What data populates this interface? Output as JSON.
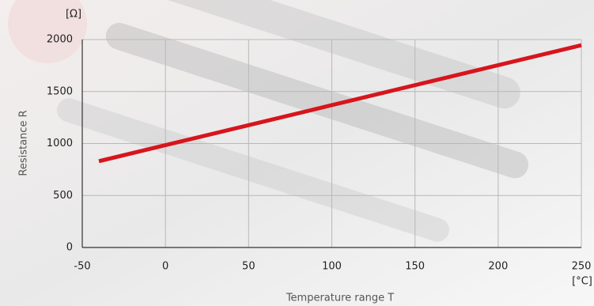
{
  "chart_data": {
    "type": "line",
    "x_label": "Temperature range T",
    "y_label": "Resistance R",
    "x_unit": "[°C]",
    "y_unit": "[Ω]",
    "x": [
      -40,
      0,
      50,
      100,
      150,
      200,
      250
    ],
    "series": [
      {
        "name": "Resistance",
        "color": "#d7151d",
        "values": [
          830,
          984,
          1176,
          1369,
          1561,
          1753,
          1945
        ]
      }
    ],
    "xlim": [
      -50,
      250
    ],
    "xticks": [
      -50,
      0,
      50,
      100,
      150,
      200,
      250
    ],
    "ylim": [
      0,
      2000
    ],
    "yticks": [
      0,
      500,
      1000,
      1500,
      2000
    ],
    "grid": true
  }
}
